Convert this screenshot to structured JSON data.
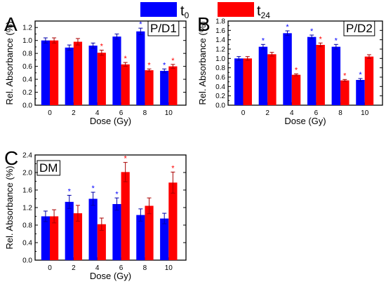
{
  "legend": {
    "items": [
      {
        "name": "t",
        "sub": "0",
        "color": "#0000ff"
      },
      {
        "name": "t",
        "sub": "24",
        "color": "#ff0000"
      }
    ]
  },
  "colors": {
    "t0": "#0000ff",
    "t24": "#ff0000",
    "errT0": "#0000aa",
    "errT24": "#aa0000"
  },
  "chart_data": [
    {
      "panel": "A",
      "type": "bar",
      "title": "P/D1",
      "xlabel": "Dose (Gy)",
      "ylabel": "Rel. Absorbance (%)",
      "categories": [
        "0",
        "2",
        "4",
        "6",
        "8",
        "10"
      ],
      "ylim": [
        0.0,
        1.3
      ],
      "yticks": [
        0.0,
        0.2,
        0.4,
        0.6,
        0.8,
        1.0,
        1.2
      ],
      "ytick_labels": [
        "0.0",
        "0.2",
        "0.4",
        "0.6",
        "0.8",
        "1.0",
        "1.2"
      ],
      "series": [
        {
          "key": "t0",
          "values": [
            1.0,
            0.89,
            0.92,
            1.06,
            1.14,
            0.53
          ],
          "errors": [
            0.04,
            0.04,
            0.04,
            0.04,
            0.05,
            0.03
          ],
          "significant": [
            false,
            false,
            false,
            false,
            true,
            true
          ]
        },
        {
          "key": "t24",
          "values": [
            1.0,
            0.98,
            0.81,
            0.63,
            0.54,
            0.6
          ],
          "errors": [
            0.04,
            0.05,
            0.04,
            0.03,
            0.02,
            0.03
          ],
          "significant": [
            false,
            false,
            true,
            true,
            true,
            true
          ]
        }
      ]
    },
    {
      "panel": "B",
      "type": "bar",
      "title": "P/D2",
      "xlabel": "Dose (Gy)",
      "ylabel": "Rel. Absorbance (%)",
      "categories": [
        "0",
        "2",
        "4",
        "6",
        "8",
        "10"
      ],
      "ylim": [
        0.0,
        1.8
      ],
      "yticks": [
        0.0,
        0.2,
        0.4,
        0.6,
        0.8,
        1.0,
        1.2,
        1.4,
        1.6,
        1.8
      ],
      "ytick_labels": [
        "0.0",
        "0.2",
        "0.4",
        "0.6",
        "0.8",
        "1.0",
        "1.2",
        "1.4",
        "1.6",
        "1.8"
      ],
      "series": [
        {
          "key": "t0",
          "values": [
            1.0,
            1.25,
            1.54,
            1.46,
            1.25,
            0.54
          ],
          "errors": [
            0.04,
            0.05,
            0.05,
            0.04,
            0.05,
            0.03
          ],
          "significant": [
            false,
            true,
            true,
            true,
            true,
            true
          ]
        },
        {
          "key": "t24",
          "values": [
            1.0,
            1.09,
            0.65,
            1.29,
            0.53,
            1.04
          ],
          "errors": [
            0.04,
            0.04,
            0.02,
            0.04,
            0.02,
            0.04
          ],
          "significant": [
            false,
            false,
            true,
            true,
            true,
            false
          ]
        }
      ]
    },
    {
      "panel": "C",
      "type": "bar",
      "title": "DM",
      "xlabel": "Dose (Gy)",
      "ylabel": "Rel. Absorbance (%)",
      "categories": [
        "0",
        "2",
        "4",
        "6",
        "8",
        "10"
      ],
      "ylim": [
        0.0,
        2.4
      ],
      "yticks": [
        0.0,
        0.4,
        0.8,
        1.2,
        1.6,
        2.0,
        2.4
      ],
      "ytick_labels": [
        "0.0",
        "0.4",
        "0.8",
        "1.2",
        "1.6",
        "2.0",
        "2.4"
      ],
      "series": [
        {
          "key": "t0",
          "values": [
            1.0,
            1.33,
            1.4,
            1.28,
            1.03,
            0.95
          ],
          "errors": [
            0.12,
            0.15,
            0.15,
            0.14,
            0.14,
            0.12
          ],
          "significant": [
            false,
            true,
            true,
            true,
            false,
            false
          ]
        },
        {
          "key": "t24",
          "values": [
            1.0,
            1.07,
            0.82,
            2.01,
            1.24,
            1.77
          ],
          "errors": [
            0.15,
            0.18,
            0.14,
            0.22,
            0.18,
            0.24
          ],
          "significant": [
            false,
            false,
            false,
            true,
            false,
            true
          ]
        }
      ]
    }
  ]
}
